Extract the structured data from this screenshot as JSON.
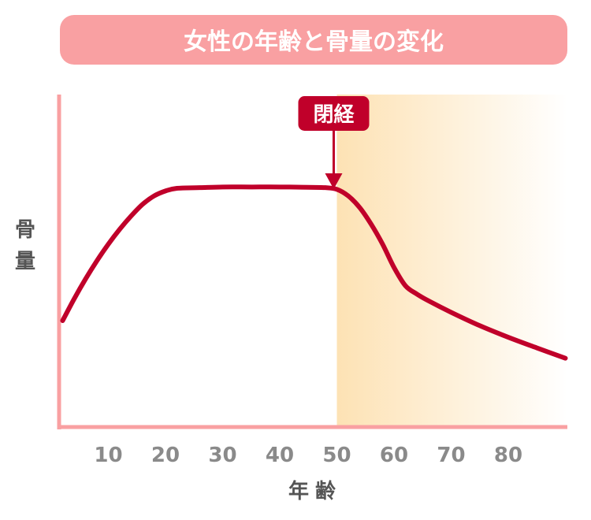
{
  "colors": {
    "title_bg": "#f9a0a2",
    "title_text": "#ffffff",
    "axis": "#f9a0a2",
    "line": "#c0002a",
    "marker_bg": "#c0002a",
    "shade_start": "#fde2b4",
    "shade_end": "#ffffff",
    "tick_text": "#8a8a8a",
    "label_text": "#555555"
  },
  "chart_data": {
    "type": "line",
    "title": "女性の年齢と骨量の変化",
    "xlabel": "年齢",
    "ylabel": "骨量",
    "xlim": [
      0,
      90
    ],
    "ylim": [
      0,
      100
    ],
    "x_ticks": [
      "10",
      "20",
      "30",
      "40",
      "50",
      "60",
      "70",
      "80"
    ],
    "y_ticks": [],
    "grid": false,
    "series": [
      {
        "x": [
          2,
          4,
          6,
          8,
          10,
          12,
          14,
          16,
          18,
          20,
          22,
          26,
          30,
          35,
          40,
          45,
          48,
          50,
          52,
          54,
          56,
          58,
          60,
          62,
          64,
          66,
          70,
          75,
          80,
          85,
          90
        ],
        "y": [
          32,
          38.5,
          44.5,
          50,
          55,
          59.5,
          63.5,
          67,
          69.5,
          71,
          71.8,
          72,
          72.2,
          72.2,
          72.2,
          72.1,
          72,
          71.5,
          69.5,
          66,
          61,
          55,
          48,
          42.5,
          40,
          38,
          34.5,
          30.5,
          27,
          23.8,
          20.7
        ]
      }
    ],
    "annotations": [
      {
        "label": "閉経",
        "x": 50,
        "shaded_from": 50
      }
    ]
  }
}
